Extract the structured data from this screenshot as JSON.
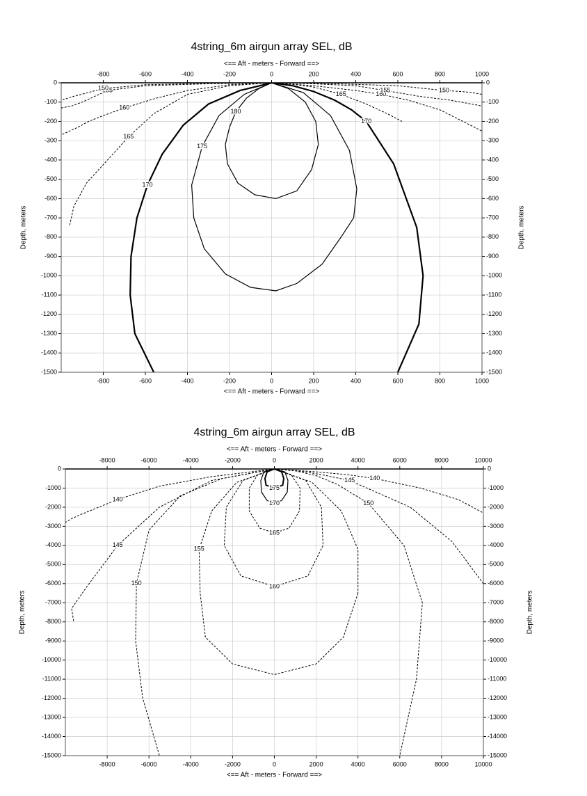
{
  "chart_data": [
    {
      "type": "contour",
      "title": "4string_6m airgun array SEL, dB",
      "x_label": "<==  Aft  - meters -  Forward ==>",
      "y_label": "Depth, meters",
      "xlim": [
        -1000,
        1000
      ],
      "xticks": [
        -800,
        -600,
        -400,
        -200,
        0,
        200,
        400,
        600,
        800,
        1000
      ],
      "ylim": [
        -1500,
        0
      ],
      "yticks": [
        0,
        -100,
        -200,
        -300,
        -400,
        -500,
        -600,
        -700,
        -800,
        -900,
        -1000,
        -1100,
        -1200,
        -1300,
        -1400,
        -1500
      ],
      "grid": true,
      "series": [
        {
          "name": "180",
          "color": "#000",
          "style": "solid",
          "line_width": 1.2,
          "x": [
            190,
            120,
            20,
            -80,
            -160,
            -210,
            -220,
            -200,
            -170,
            -120,
            -60,
            0,
            80,
            160,
            210,
            222,
            190
          ],
          "values": [
            -450,
            -560,
            -600,
            -580,
            -520,
            -420,
            -320,
            -230,
            -150,
            -80,
            -30,
            0,
            -30,
            -100,
            -200,
            -320,
            -450
          ]
        },
        {
          "name": "175",
          "color": "#000",
          "style": "solid",
          "line_width": 1.2,
          "x": [
            330,
            240,
            120,
            20,
            -100,
            -220,
            -320,
            -370,
            -380,
            -330,
            -250,
            -130,
            0,
            150,
            280,
            370,
            405,
            390,
            330
          ],
          "values": [
            -800,
            -940,
            -1040,
            -1078,
            -1060,
            -990,
            -860,
            -700,
            -530,
            -330,
            -170,
            -60,
            0,
            -50,
            -170,
            -350,
            -550,
            -700,
            -800
          ]
        },
        {
          "name": "170",
          "color": "#000",
          "style": "solid",
          "line_width": 2.2,
          "x": [
            0,
            -150,
            -300,
            -420,
            -520,
            -590,
            -640,
            -668,
            -672,
            -650,
            -560
          ],
          "values": [
            0,
            -40,
            -110,
            -220,
            -370,
            -530,
            -700,
            -900,
            -1100,
            -1300,
            -1500
          ]
        },
        {
          "name": "170",
          "color": "#000",
          "style": "solid",
          "line_width": 2.2,
          "x": [
            0,
            100,
            200,
            300,
            380,
            450,
            580,
            690,
            720,
            700,
            600
          ],
          "values": [
            0,
            -15,
            -45,
            -90,
            -140,
            -200,
            -420,
            -750,
            -1000,
            -1250,
            -1500
          ]
        },
        {
          "name": "165",
          "color": "#000",
          "style": "dashed",
          "line_width": 1,
          "x": [
            0,
            -200,
            -400,
            -560,
            -680,
            -780,
            -880,
            -940,
            -960
          ],
          "values": [
            0,
            -15,
            -60,
            -160,
            -280,
            -400,
            -520,
            -640,
            -740
          ]
        },
        {
          "name": "165",
          "color": "#000",
          "style": "dashed",
          "line_width": 1,
          "x": [
            0,
            100,
            200,
            330,
            450,
            550,
            620
          ],
          "values": [
            0,
            -8,
            -22,
            -60,
            -110,
            -160,
            -200
          ]
        },
        {
          "name": "160",
          "color": "#000",
          "style": "dashed",
          "line_width": 1,
          "x": [
            0,
            -200,
            -400,
            -550,
            -700,
            -800,
            -870,
            -920,
            -1000
          ],
          "values": [
            0,
            -10,
            -40,
            -80,
            -130,
            -170,
            -200,
            -230,
            -270
          ]
        },
        {
          "name": "160",
          "color": "#000",
          "style": "dashed",
          "line_width": 1,
          "x": [
            0,
            200,
            400,
            520,
            650,
            800,
            1000
          ],
          "values": [
            0,
            -15,
            -40,
            -60,
            -90,
            -140,
            -250
          ]
        },
        {
          "name": "155",
          "color": "#000",
          "style": "dashed",
          "line_width": 1,
          "x": [
            0,
            -300,
            -600,
            -780,
            -900,
            -950,
            -1000
          ],
          "values": [
            0,
            -5,
            -15,
            -40,
            -100,
            -120,
            -130
          ]
        },
        {
          "name": "155",
          "color": "#000",
          "style": "dashed",
          "line_width": 1,
          "x": [
            0,
            200,
            400,
            540,
            700,
            850,
            1000
          ],
          "values": [
            0,
            -5,
            -15,
            -40,
            -70,
            -90,
            -120
          ]
        },
        {
          "name": "150",
          "color": "#000",
          "style": "dashed",
          "line_width": 1,
          "x": [
            0,
            -300,
            -600,
            -800,
            -940,
            -1000
          ],
          "values": [
            0,
            -3,
            -10,
            -30,
            -70,
            -90
          ]
        },
        {
          "name": "150",
          "color": "#000",
          "style": "dashed",
          "line_width": 1,
          "x": [
            0,
            300,
            600,
            820,
            900,
            950,
            1000
          ],
          "values": [
            0,
            -5,
            -15,
            -40,
            -45,
            -50,
            -60
          ]
        }
      ]
    },
    {
      "type": "contour",
      "title": "4string_6m airgun array SEL, dB",
      "x_label": "<==  Aft  - meters -  Forward ==>",
      "y_label": "Depth, meters",
      "xlim": [
        -10000,
        10000
      ],
      "xticks": [
        -8000,
        -6000,
        -4000,
        -2000,
        0,
        2000,
        4000,
        6000,
        8000,
        10000
      ],
      "ylim": [
        -15000,
        0
      ],
      "yticks": [
        0,
        -1000,
        -2000,
        -3000,
        -4000,
        -5000,
        -6000,
        -7000,
        -8000,
        -9000,
        -10000,
        -11000,
        -12000,
        -13000,
        -14000,
        -15000
      ],
      "grid": true,
      "series": [
        {
          "name": "175",
          "color": "#000",
          "style": "solid",
          "line_width": 2,
          "x": [
            0,
            -350,
            -450,
            -400,
            0,
            400,
            450,
            350,
            0
          ],
          "values": [
            0,
            -150,
            -500,
            -850,
            -1000,
            -850,
            -500,
            -150,
            0
          ]
        },
        {
          "name": "170",
          "color": "#000",
          "style": "solid",
          "line_width": 1.2,
          "x": [
            0,
            -500,
            -650,
            -620,
            -350,
            0,
            350,
            620,
            650,
            500,
            0
          ],
          "values": [
            0,
            -150,
            -600,
            -1200,
            -1650,
            -1800,
            -1650,
            -1200,
            -600,
            -150,
            0
          ]
        },
        {
          "name": "165",
          "color": "#000",
          "style": "dashed",
          "line_width": 1,
          "x": [
            0,
            -800,
            -1200,
            -1200,
            -700,
            0,
            700,
            1200,
            1230,
            800,
            0
          ],
          "values": [
            0,
            -300,
            -1000,
            -2200,
            -3100,
            -3350,
            -3100,
            -2200,
            -1000,
            -300,
            0
          ]
        },
        {
          "name": "160",
          "color": "#000",
          "style": "dashed",
          "line_width": 1,
          "x": [
            0,
            -1500,
            -2300,
            -2400,
            -1600,
            0,
            1600,
            2330,
            2250,
            1500,
            0
          ],
          "values": [
            0,
            -600,
            -2000,
            -4000,
            -5600,
            -6150,
            -5600,
            -4000,
            -2000,
            -600,
            0
          ]
        },
        {
          "name": "155",
          "color": "#000",
          "style": "dashed",
          "line_width": 1,
          "x": [
            4000,
            3300,
            2000,
            0,
            -2000,
            -3300,
            -3550,
            -3600,
            -3000,
            -1800,
            0,
            1800,
            3200,
            4000,
            4000
          ],
          "values": [
            -6500,
            -8800,
            -10200,
            -10760,
            -10200,
            -8800,
            -6500,
            -4200,
            -2200,
            -700,
            0,
            -700,
            -2200,
            -4200,
            -6500
          ]
        },
        {
          "name": "150",
          "color": "#000",
          "style": "dashed",
          "line_width": 1,
          "x": [
            0,
            -2500,
            -4500,
            -6000,
            -6600,
            -6640,
            -6300,
            -5500
          ],
          "values": [
            0,
            -500,
            -1400,
            -3200,
            -6000,
            -9000,
            -12000,
            -15000
          ]
        },
        {
          "name": "150",
          "color": "#000",
          "style": "dashed",
          "line_width": 1,
          "x": [
            0,
            1000,
            2000,
            3000,
            4500,
            6200,
            7080,
            6800,
            6000
          ],
          "values": [
            0,
            -100,
            -350,
            -800,
            -1800,
            -4000,
            -7000,
            -11000,
            -15000
          ]
        },
        {
          "name": "145",
          "color": "#000",
          "style": "dashed",
          "line_width": 1,
          "x": [
            0,
            -3000,
            -5500,
            -7500,
            -9000,
            -9700,
            -9600
          ],
          "values": [
            0,
            -600,
            -2000,
            -4000,
            -6200,
            -7300,
            -8000
          ]
        },
        {
          "name": "145",
          "color": "#000",
          "style": "dashed",
          "line_width": 1,
          "x": [
            0,
            1500,
            2500,
            3600,
            6500,
            8500,
            10000
          ],
          "values": [
            0,
            -150,
            -350,
            -600,
            -2000,
            -3800,
            -6000
          ]
        },
        {
          "name": "140",
          "color": "#000",
          "style": "dashed",
          "line_width": 1,
          "x": [
            0,
            -3000,
            -5500,
            -7500,
            -9300,
            -9700,
            -10000
          ],
          "values": [
            0,
            -400,
            -900,
            -1600,
            -2400,
            -2600,
            -2800
          ]
        },
        {
          "name": "140",
          "color": "#000",
          "style": "dashed",
          "line_width": 1,
          "x": [
            0,
            2000,
            3500,
            4800,
            7000,
            8800,
            10000
          ],
          "values": [
            0,
            -150,
            -300,
            -500,
            -1000,
            -1600,
            -2300
          ]
        }
      ]
    }
  ]
}
